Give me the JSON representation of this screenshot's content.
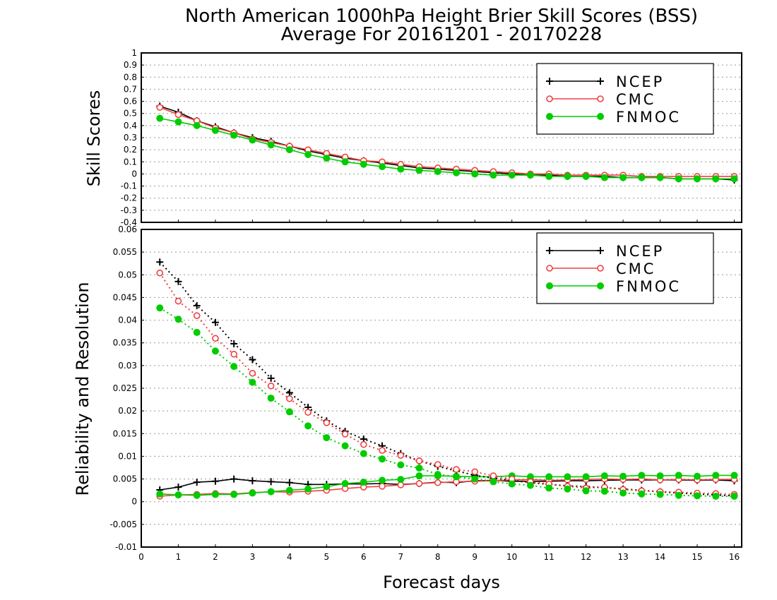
{
  "chart_data": {
    "type": "line",
    "title_line1": "North American 1000hPa Height Brier Skill Scores (BSS)",
    "title_line2": "Average For 20161201 - 20170228",
    "xlabel": "Forecast days",
    "xlim": [
      0,
      16.2
    ],
    "xticks": [
      "0",
      "1",
      "2",
      "3",
      "4",
      "5",
      "6",
      "7",
      "8",
      "9",
      "10",
      "11",
      "12",
      "13",
      "14",
      "15",
      "16"
    ],
    "x": [
      0.5,
      1,
      1.5,
      2,
      2.5,
      3,
      3.5,
      4,
      4.5,
      5,
      5.5,
      6,
      6.5,
      7,
      7.5,
      8,
      8.5,
      9,
      9.5,
      10,
      10.5,
      11,
      11.5,
      12,
      12.5,
      13,
      13.5,
      14,
      14.5,
      15,
      15.5,
      16
    ],
    "colors": {
      "NCEP": "#000000",
      "CMC": "#f04040",
      "FNMOC": "#00cc00"
    },
    "top_panel": {
      "ylabel": "Skill Scores",
      "ylim": [
        -0.4,
        1.0
      ],
      "yticks": [
        "-0.4",
        "-0.3",
        "-0.2",
        "-0.1",
        "0",
        "0.1",
        "0.2",
        "0.3",
        "0.4",
        "0.5",
        "0.6",
        "0.7",
        "0.8",
        "0.9",
        "1"
      ],
      "legend": [
        "NCEP",
        "CMC",
        "FNMOC"
      ],
      "series": [
        {
          "name": "NCEP",
          "marker": "plus",
          "values": [
            0.56,
            0.51,
            0.44,
            0.39,
            0.34,
            0.3,
            0.27,
            0.23,
            0.19,
            0.16,
            0.13,
            0.11,
            0.09,
            0.07,
            0.05,
            0.04,
            0.03,
            0.02,
            0.01,
            0.0,
            -0.01,
            -0.01,
            -0.02,
            -0.02,
            -0.02,
            -0.03,
            -0.03,
            -0.03,
            -0.04,
            -0.04,
            -0.04,
            -0.05
          ]
        },
        {
          "name": "CMC",
          "marker": "open-circle",
          "values": [
            0.55,
            0.49,
            0.44,
            0.38,
            0.34,
            0.29,
            0.26,
            0.23,
            0.2,
            0.17,
            0.14,
            0.11,
            0.1,
            0.08,
            0.06,
            0.05,
            0.04,
            0.03,
            0.02,
            0.01,
            0.0,
            0.0,
            -0.01,
            -0.01,
            -0.01,
            -0.01,
            -0.02,
            -0.02,
            -0.02,
            -0.02,
            -0.02,
            -0.02
          ]
        },
        {
          "name": "FNMOC",
          "marker": "filled-circle",
          "values": [
            0.46,
            0.43,
            0.4,
            0.36,
            0.32,
            0.28,
            0.24,
            0.2,
            0.16,
            0.13,
            0.1,
            0.08,
            0.06,
            0.04,
            0.03,
            0.02,
            0.01,
            0.0,
            -0.01,
            -0.01,
            -0.01,
            -0.02,
            -0.02,
            -0.02,
            -0.03,
            -0.03,
            -0.03,
            -0.03,
            -0.04,
            -0.04,
            -0.04,
            -0.04
          ]
        }
      ]
    },
    "bottom_panel": {
      "ylabel": "Reliability and Resolution",
      "ylim": [
        -0.01,
        0.06
      ],
      "yticks": [
        "-0.01",
        "-0.005",
        "0",
        "0.005",
        "0.01",
        "0.015",
        "0.02",
        "0.025",
        "0.03",
        "0.035",
        "0.04",
        "0.045",
        "0.05",
        "0.055",
        "0.06"
      ],
      "legend": [
        "NCEP",
        "CMC",
        "FNMOC"
      ],
      "reliability": [
        {
          "name": "NCEP",
          "marker": "plus",
          "values": [
            0.0026,
            0.0032,
            0.0043,
            0.0045,
            0.005,
            0.0046,
            0.0044,
            0.0042,
            0.0038,
            0.0038,
            0.0039,
            0.0039,
            0.004,
            0.0038,
            0.004,
            0.0043,
            0.0042,
            0.0046,
            0.0047,
            0.0045,
            0.0045,
            0.0045,
            0.0046,
            0.0046,
            0.0047,
            0.0048,
            0.0048,
            0.0048,
            0.0048,
            0.0047,
            0.0048,
            0.0046
          ]
        },
        {
          "name": "CMC",
          "marker": "open-circle",
          "values": [
            0.0012,
            0.0015,
            0.0016,
            0.0018,
            0.0017,
            0.002,
            0.0022,
            0.0021,
            0.0023,
            0.0025,
            0.0029,
            0.0032,
            0.0034,
            0.0037,
            0.004,
            0.0042,
            0.0044,
            0.0045,
            0.0046,
            0.0048,
            0.0049,
            0.0047,
            0.0048,
            0.0049,
            0.005,
            0.0049,
            0.005,
            0.0048,
            0.0049,
            0.0048,
            0.0049,
            0.0049
          ]
        },
        {
          "name": "FNMOC",
          "marker": "filled-circle",
          "values": [
            0.0017,
            0.0015,
            0.0014,
            0.0016,
            0.0016,
            0.0019,
            0.0022,
            0.0025,
            0.0028,
            0.0033,
            0.004,
            0.0043,
            0.0047,
            0.0049,
            0.0057,
            0.0057,
            0.0056,
            0.0055,
            0.0055,
            0.0057,
            0.0055,
            0.0055,
            0.0055,
            0.0055,
            0.0057,
            0.0056,
            0.0058,
            0.0057,
            0.0058,
            0.0056,
            0.0058,
            0.0058
          ]
        }
      ],
      "resolution": [
        {
          "name": "NCEP",
          "marker": "plus",
          "values": [
            0.0528,
            0.0485,
            0.0432,
            0.0395,
            0.0348,
            0.0313,
            0.0272,
            0.024,
            0.0208,
            0.0178,
            0.0155,
            0.0138,
            0.0123,
            0.0106,
            0.009,
            0.0078,
            0.0068,
            0.0058,
            0.0052,
            0.0047,
            0.0042,
            0.0038,
            0.0035,
            0.0033,
            0.0031,
            0.0028,
            0.0025,
            0.0022,
            0.0019,
            0.0017,
            0.0015,
            0.0013
          ]
        },
        {
          "name": "CMC",
          "marker": "open-circle",
          "values": [
            0.0504,
            0.0442,
            0.041,
            0.036,
            0.0325,
            0.0283,
            0.0255,
            0.0227,
            0.0197,
            0.0174,
            0.0149,
            0.0126,
            0.0113,
            0.0102,
            0.009,
            0.0082,
            0.0071,
            0.0066,
            0.0057,
            0.005,
            0.0044,
            0.0039,
            0.0034,
            0.003,
            0.0032,
            0.0027,
            0.0024,
            0.0022,
            0.0021,
            0.0019,
            0.0018,
            0.0016
          ]
        },
        {
          "name": "FNMOC",
          "marker": "filled-circle",
          "values": [
            0.0427,
            0.0402,
            0.0373,
            0.0332,
            0.0298,
            0.0263,
            0.0228,
            0.0198,
            0.0167,
            0.0141,
            0.0123,
            0.0106,
            0.0094,
            0.0081,
            0.0074,
            0.006,
            0.0055,
            0.005,
            0.0044,
            0.0039,
            0.0036,
            0.003,
            0.0028,
            0.0024,
            0.0023,
            0.0019,
            0.0017,
            0.0016,
            0.0014,
            0.0013,
            0.0012,
            0.0012
          ]
        }
      ]
    }
  }
}
